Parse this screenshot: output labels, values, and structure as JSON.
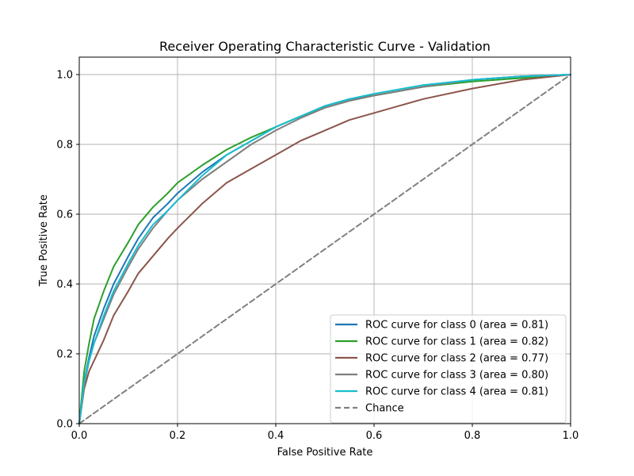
{
  "chart_data": {
    "type": "line",
    "title": "Receiver Operating Characteristic Curve - Validation",
    "xlabel": "False Positive Rate",
    "ylabel": "True Positive Rate",
    "xlim": [
      0.0,
      1.0
    ],
    "ylim": [
      0.0,
      1.05
    ],
    "grid": true,
    "legend_position": "lower-right",
    "x_ticks": [
      "0.0",
      "0.2",
      "0.4",
      "0.6",
      "0.8",
      "1.0"
    ],
    "y_ticks": [
      "0.0",
      "0.2",
      "0.4",
      "0.6",
      "0.8",
      "1.0"
    ],
    "series": [
      {
        "name": "ROC curve for class 0 (area = 0.81)",
        "color": "#1f77b4",
        "dash": "solid",
        "x": [
          0,
          0.01,
          0.02,
          0.03,
          0.05,
          0.07,
          0.1,
          0.12,
          0.15,
          0.18,
          0.2,
          0.25,
          0.3,
          0.35,
          0.4,
          0.45,
          0.5,
          0.55,
          0.6,
          0.7,
          0.8,
          0.9,
          1.0
        ],
        "y": [
          0,
          0.12,
          0.19,
          0.25,
          0.33,
          0.4,
          0.48,
          0.53,
          0.59,
          0.63,
          0.66,
          0.72,
          0.77,
          0.81,
          0.85,
          0.88,
          0.91,
          0.93,
          0.94,
          0.965,
          0.985,
          0.995,
          1.0
        ]
      },
      {
        "name": "ROC curve for class 1 (area = 0.82)",
        "color": "#2ca02c",
        "dash": "solid",
        "x": [
          0,
          0.01,
          0.02,
          0.03,
          0.05,
          0.07,
          0.1,
          0.12,
          0.15,
          0.18,
          0.2,
          0.25,
          0.3,
          0.35,
          0.4,
          0.45,
          0.5,
          0.55,
          0.6,
          0.7,
          0.8,
          0.9,
          1.0
        ],
        "y": [
          0,
          0.15,
          0.23,
          0.3,
          0.38,
          0.45,
          0.52,
          0.57,
          0.62,
          0.66,
          0.69,
          0.74,
          0.785,
          0.82,
          0.85,
          0.88,
          0.905,
          0.925,
          0.94,
          0.965,
          0.98,
          0.99,
          1.0
        ]
      },
      {
        "name": "ROC curve for class 2 (area = 0.77)",
        "color": "#8c564b",
        "dash": "solid",
        "x": [
          0,
          0.01,
          0.02,
          0.03,
          0.05,
          0.07,
          0.1,
          0.12,
          0.15,
          0.18,
          0.2,
          0.25,
          0.3,
          0.35,
          0.4,
          0.45,
          0.5,
          0.55,
          0.6,
          0.7,
          0.8,
          0.9,
          1.0
        ],
        "y": [
          0,
          0.1,
          0.15,
          0.18,
          0.24,
          0.31,
          0.38,
          0.43,
          0.48,
          0.53,
          0.56,
          0.63,
          0.69,
          0.73,
          0.77,
          0.81,
          0.84,
          0.87,
          0.89,
          0.93,
          0.96,
          0.985,
          1.0
        ]
      },
      {
        "name": "ROC curve for class 3 (area = 0.80)",
        "color": "#7f7f7f",
        "dash": "solid",
        "x": [
          0,
          0.01,
          0.02,
          0.03,
          0.05,
          0.07,
          0.1,
          0.12,
          0.15,
          0.18,
          0.2,
          0.25,
          0.3,
          0.35,
          0.4,
          0.45,
          0.5,
          0.55,
          0.6,
          0.7,
          0.8,
          0.9,
          1.0
        ],
        "y": [
          0,
          0.11,
          0.18,
          0.23,
          0.3,
          0.37,
          0.45,
          0.5,
          0.56,
          0.61,
          0.64,
          0.7,
          0.75,
          0.8,
          0.84,
          0.875,
          0.905,
          0.925,
          0.94,
          0.965,
          0.985,
          0.995,
          1.0
        ]
      },
      {
        "name": "ROC curve for class 4 (area = 0.81)",
        "color": "#17becf",
        "dash": "solid",
        "x": [
          0,
          0.01,
          0.02,
          0.03,
          0.05,
          0.07,
          0.1,
          0.12,
          0.15,
          0.18,
          0.2,
          0.25,
          0.3,
          0.35,
          0.4,
          0.45,
          0.5,
          0.55,
          0.6,
          0.7,
          0.8,
          0.9,
          1.0
        ],
        "y": [
          0,
          0.12,
          0.18,
          0.23,
          0.31,
          0.38,
          0.46,
          0.51,
          0.57,
          0.61,
          0.64,
          0.71,
          0.77,
          0.81,
          0.85,
          0.88,
          0.91,
          0.93,
          0.945,
          0.97,
          0.985,
          0.995,
          1.0
        ]
      },
      {
        "name": "Chance",
        "color": "#808080",
        "dash": "dashed",
        "x": [
          0,
          1
        ],
        "y": [
          0,
          1
        ]
      }
    ]
  }
}
